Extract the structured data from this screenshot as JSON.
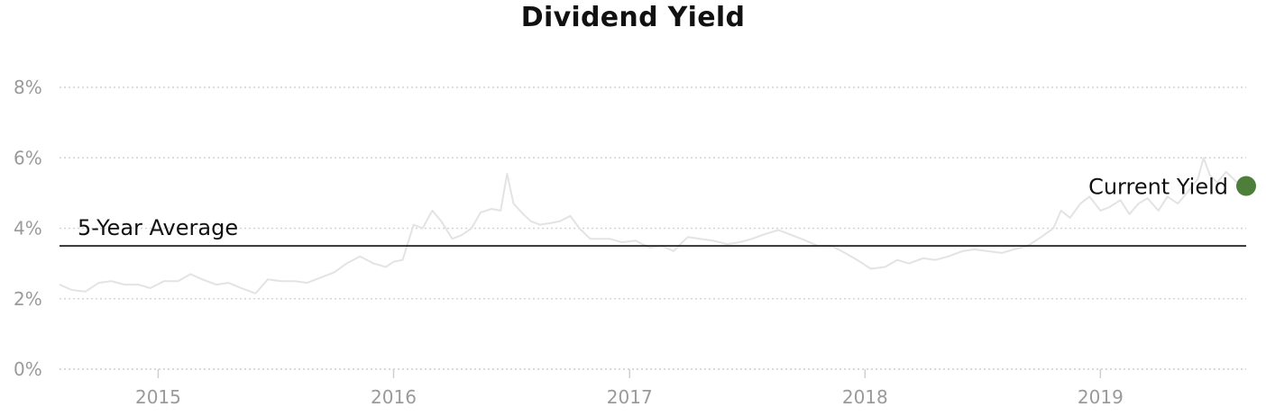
{
  "chart_data": {
    "type": "line",
    "title": "Dividend Yield",
    "xlabel": "",
    "ylabel": "",
    "x_range": [
      "2014-08-01",
      "2019-08-15"
    ],
    "x_ticks": [
      "2015",
      "2016",
      "2017",
      "2018",
      "2019"
    ],
    "y_ticks": [
      "0%",
      "2%",
      "4%",
      "6%",
      "8%"
    ],
    "ylim": [
      0,
      8
    ],
    "grid": true,
    "colors": {
      "series": "#e3e3e3",
      "average": "#111111",
      "current_marker": "#4e7f3a",
      "grid": "#d4d4d4",
      "tick": "#9a9a9a"
    },
    "five_year_average": {
      "label": "5-Year Average",
      "value": 3.5
    },
    "current_yield": {
      "label": "Current Yield",
      "date": "2019-08-15",
      "value": 5.2
    },
    "series": [
      {
        "x": [
          "2014-08-01",
          "2014-08-20",
          "2014-09-10",
          "2014-10-01",
          "2014-10-20",
          "2014-11-10",
          "2014-12-01",
          "2014-12-20",
          "2015-01-10",
          "2015-02-01",
          "2015-02-20",
          "2015-03-10",
          "2015-04-01",
          "2015-04-20",
          "2015-05-10",
          "2015-06-01",
          "2015-06-20",
          "2015-07-10",
          "2015-08-01",
          "2015-08-20",
          "2015-09-10",
          "2015-10-01",
          "2015-10-20",
          "2015-11-10",
          "2015-12-01",
          "2015-12-20",
          "2016-01-01",
          "2016-01-15",
          "2016-02-01",
          "2016-02-15",
          "2016-03-01",
          "2016-03-15",
          "2016-04-01",
          "2016-04-15",
          "2016-05-01",
          "2016-05-15",
          "2016-06-01",
          "2016-06-15",
          "2016-06-25",
          "2016-07-05",
          "2016-07-20",
          "2016-08-01",
          "2016-08-15",
          "2016-09-01",
          "2016-09-15",
          "2016-10-01",
          "2016-10-15",
          "2016-11-01",
          "2016-11-15",
          "2016-12-01",
          "2016-12-20",
          "2017-01-10",
          "2017-02-01",
          "2017-02-20",
          "2017-03-10",
          "2017-04-01",
          "2017-04-20",
          "2017-05-10",
          "2017-06-01",
          "2017-06-20",
          "2017-07-10",
          "2017-08-01",
          "2017-08-20",
          "2017-09-10",
          "2017-10-01",
          "2017-10-20",
          "2017-11-10",
          "2017-12-01",
          "2017-12-20",
          "2018-01-10",
          "2018-02-01",
          "2018-02-20",
          "2018-03-10",
          "2018-04-01",
          "2018-04-20",
          "2018-05-10",
          "2018-06-01",
          "2018-06-20",
          "2018-07-10",
          "2018-08-01",
          "2018-08-20",
          "2018-09-10",
          "2018-10-01",
          "2018-10-20",
          "2018-11-01",
          "2018-11-15",
          "2018-12-01",
          "2018-12-15",
          "2019-01-01",
          "2019-01-15",
          "2019-02-01",
          "2019-02-15",
          "2019-03-01",
          "2019-03-15",
          "2019-04-01",
          "2019-04-15",
          "2019-05-01",
          "2019-05-15",
          "2019-06-01",
          "2019-06-10",
          "2019-06-20",
          "2019-07-01",
          "2019-07-15",
          "2019-08-01",
          "2019-08-15"
        ],
        "values": [
          2.4,
          2.25,
          2.2,
          2.45,
          2.5,
          2.4,
          2.4,
          2.3,
          2.5,
          2.5,
          2.7,
          2.55,
          2.4,
          2.45,
          2.3,
          2.15,
          2.55,
          2.5,
          2.5,
          2.45,
          2.6,
          2.75,
          3.0,
          3.2,
          3.0,
          2.9,
          3.05,
          3.1,
          4.1,
          4.0,
          4.5,
          4.2,
          3.7,
          3.8,
          4.0,
          4.45,
          4.55,
          4.5,
          5.55,
          4.7,
          4.4,
          4.2,
          4.1,
          4.15,
          4.2,
          4.35,
          4.0,
          3.7,
          3.7,
          3.7,
          3.6,
          3.65,
          3.45,
          3.5,
          3.35,
          3.75,
          3.7,
          3.65,
          3.55,
          3.6,
          3.7,
          3.85,
          3.95,
          3.8,
          3.65,
          3.5,
          3.5,
          3.3,
          3.1,
          2.85,
          2.9,
          3.1,
          3.0,
          3.15,
          3.1,
          3.2,
          3.35,
          3.4,
          3.35,
          3.3,
          3.4,
          3.5,
          3.75,
          4.0,
          4.5,
          4.3,
          4.7,
          4.9,
          4.5,
          4.6,
          4.8,
          4.4,
          4.7,
          4.85,
          4.5,
          4.9,
          4.7,
          5.0,
          5.4,
          6.0,
          5.5,
          5.3,
          5.6,
          5.3,
          5.2
        ]
      }
    ]
  }
}
